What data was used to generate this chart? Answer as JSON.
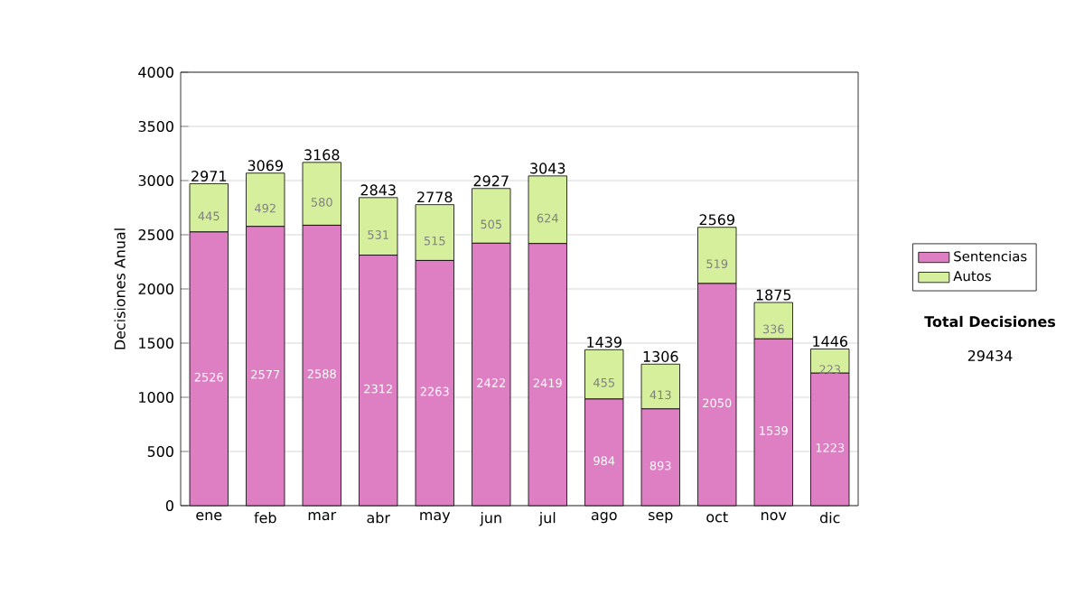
{
  "chart_data": {
    "type": "bar",
    "stacked": true,
    "ylabel": "Decisiones Anual",
    "categories": [
      "ene",
      "feb",
      "mar",
      "abr",
      "may",
      "jun",
      "jul",
      "ago",
      "sep",
      "oct",
      "nov",
      "dic"
    ],
    "series": [
      {
        "name": "Sentencias",
        "color": "#dd7fc2",
        "values": [
          2526,
          2577,
          2588,
          2312,
          2263,
          2422,
          2419,
          984,
          893,
          2050,
          1539,
          1223
        ]
      },
      {
        "name": "Autos",
        "color": "#d6ef9c",
        "values": [
          445,
          492,
          580,
          531,
          515,
          505,
          624,
          455,
          413,
          519,
          336,
          223
        ]
      }
    ],
    "data_labels": true,
    "totals": [
      "2971",
      "3069",
      "3168",
      "2843",
      "2778",
      "2927",
      "3043",
      "1439",
      "1306",
      "2569",
      "1875",
      "1446"
    ],
    "ylim": [
      0,
      4000
    ],
    "yticks": [
      0,
      500,
      1000,
      1500,
      2000,
      2500,
      3000,
      3500,
      4000
    ],
    "grid": "y",
    "legend": "right",
    "annotations": [
      "Total Decisiones",
      "29434"
    ]
  }
}
